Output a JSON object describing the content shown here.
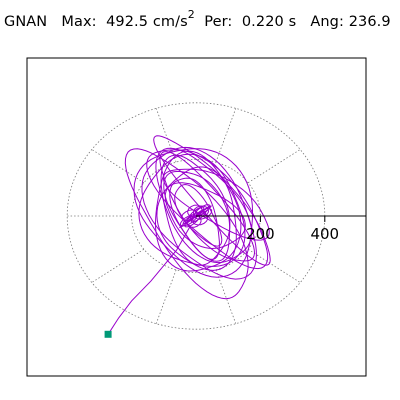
{
  "header": {
    "station": "GNAN",
    "max_label": "Max:",
    "max_value": "492.5",
    "max_unit_base": "cm/s",
    "max_unit_exp": "2",
    "per_label": "Per:",
    "per_value": "0.220 s",
    "ang_label": "Ang:",
    "ang_value": "236.9"
  },
  "chart_data": {
    "type": "scatter",
    "title": "GNAN  Max: 492.5 cm/s2  Per: 0.220 s  Ang: 236.9",
    "x_ticks": [
      "200",
      "400"
    ],
    "x_tick_values": [
      200,
      400
    ],
    "polar_grid": {
      "radii": [
        200,
        400
      ],
      "spoke_angles_deg": [
        0,
        36,
        72,
        108,
        144,
        180,
        216,
        252,
        288,
        324
      ],
      "style": "dotted"
    },
    "max_amplitude": 492.5,
    "angle_deg": 236.9,
    "end_point": {
      "x": -273,
      "y": -418,
      "color": "#009977"
    },
    "trace_color": "#9900cc",
    "loops": [
      {
        "rx": 60,
        "ry": 150,
        "rot": 20,
        "cx": 0,
        "cy": 0
      },
      {
        "rx": 80,
        "ry": 170,
        "rot": 25,
        "cx": 10,
        "cy": 10
      },
      {
        "rx": 95,
        "ry": 195,
        "rot": 15,
        "cx": -5,
        "cy": 20
      },
      {
        "rx": 110,
        "ry": 220,
        "rot": 30,
        "cx": 20,
        "cy": 30
      },
      {
        "rx": 70,
        "ry": 230,
        "rot": 35,
        "cx": 30,
        "cy": 20
      },
      {
        "rx": 120,
        "ry": 180,
        "rot": 10,
        "cx": 10,
        "cy": -10
      },
      {
        "rx": 140,
        "ry": 250,
        "rot": 30,
        "cx": 15,
        "cy": 15
      },
      {
        "rx": 100,
        "ry": 260,
        "rot": 40,
        "cx": 40,
        "cy": 40
      },
      {
        "rx": 60,
        "ry": 280,
        "rot": 38,
        "cx": 60,
        "cy": 60
      },
      {
        "rx": 130,
        "ry": 210,
        "rot": 5,
        "cx": 0,
        "cy": 5
      },
      {
        "rx": 90,
        "ry": 140,
        "rot": 50,
        "cx": 25,
        "cy": 0
      },
      {
        "rx": 155,
        "ry": 200,
        "rot": 20,
        "cx": -10,
        "cy": 10
      },
      {
        "rx": 45,
        "ry": 120,
        "rot": 30,
        "cx": 5,
        "cy": 5
      },
      {
        "rx": 170,
        "ry": 235,
        "rot": 25,
        "cx": 5,
        "cy": 25
      },
      {
        "rx": 75,
        "ry": 190,
        "rot": 55,
        "cx": 70,
        "cy": 50
      },
      {
        "rx": 110,
        "ry": 300,
        "rot": 33,
        "cx": -20,
        "cy": -30
      }
    ]
  }
}
